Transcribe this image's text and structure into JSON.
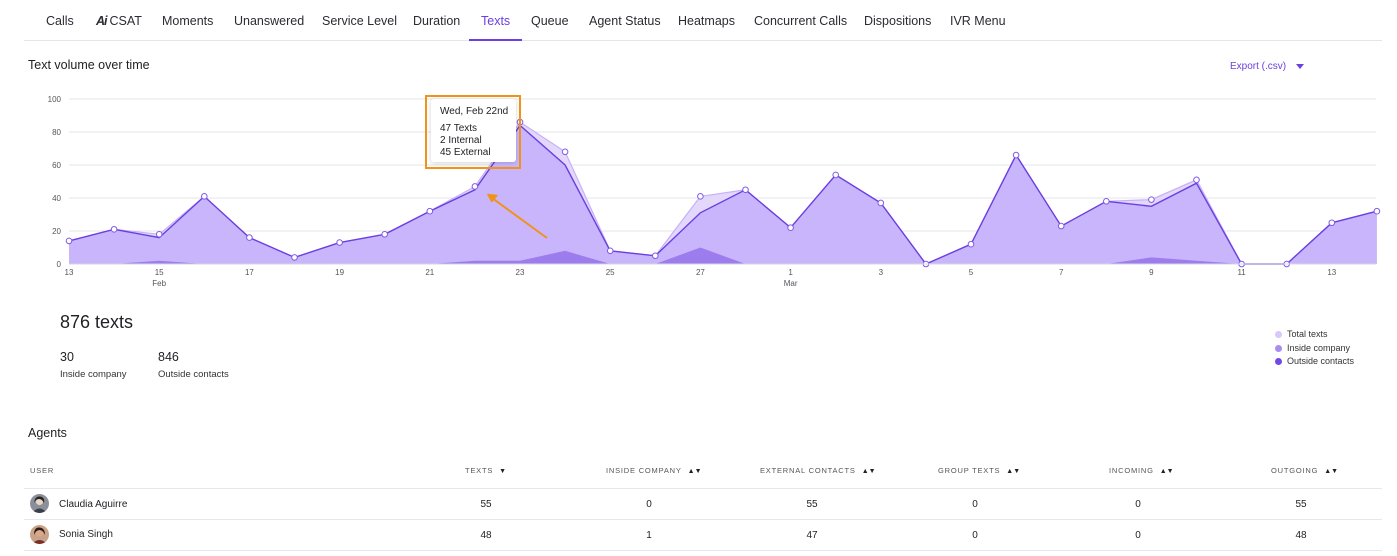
{
  "tabs": [
    "Calls",
    "CSAT",
    "Moments",
    "Unanswered",
    "Service Level",
    "Duration",
    "Texts",
    "Queue",
    "Agent Status",
    "Heatmaps",
    "Concurrent Calls",
    "Dispositions",
    "IVR Menu"
  ],
  "active_tab": "Texts",
  "ai_badge": "Ai",
  "export_label": "Export (.csv)",
  "tooltip": {
    "date": "Wed, Feb 22nd",
    "texts": "47 Texts",
    "internal": "2 Internal",
    "external": "45 External"
  },
  "summary": {
    "total": "876 texts",
    "inside_value": "30",
    "inside_label": "Inside company",
    "outside_value": "846",
    "outside_label": "Outside contacts"
  },
  "agents": {
    "title": "Agents",
    "columns": [
      "USER",
      "TEXTS",
      "INSIDE COMPANY",
      "EXTERNAL CONTACTS",
      "GROUP TEXTS",
      "INCOMING",
      "OUTGOING"
    ],
    "rows": [
      {
        "name": "Claudia Aguirre",
        "values": [
          "55",
          "0",
          "55",
          "0",
          "0",
          "55"
        ]
      },
      {
        "name": "Sonia Singh",
        "values": [
          "48",
          "1",
          "47",
          "0",
          "0",
          "48"
        ]
      }
    ]
  },
  "colors": {
    "accent": "#6c3fe0",
    "total": "#d8c8fb",
    "inside": "#a98cf2",
    "outside": "#7248e6",
    "highlight": "#f0931c"
  },
  "chart_data": {
    "type": "area",
    "title": "Text volume over time",
    "xlabel": "",
    "ylabel": "",
    "ylim": [
      0,
      100
    ],
    "yticks": [
      0,
      20,
      40,
      60,
      80,
      100
    ],
    "x": [
      "Feb 13",
      "Feb 14",
      "Feb 15",
      "Feb 16",
      "Feb 17",
      "Feb 18",
      "Feb 19",
      "Feb 20",
      "Feb 21",
      "Feb 22",
      "Feb 23",
      "Feb 24",
      "Feb 25",
      "Feb 26",
      "Feb 27",
      "Feb 28",
      "Mar 1",
      "Mar 2",
      "Mar 3",
      "Mar 4",
      "Mar 5",
      "Mar 6",
      "Mar 7",
      "Mar 8",
      "Mar 9",
      "Mar 10",
      "Mar 11",
      "Mar 12",
      "Mar 13",
      "Mar 14"
    ],
    "x_tick_labels": [
      {
        "index": 0,
        "label": "13"
      },
      {
        "index": 2,
        "label": "15",
        "sub": "Feb"
      },
      {
        "index": 4,
        "label": "17"
      },
      {
        "index": 6,
        "label": "19"
      },
      {
        "index": 8,
        "label": "21"
      },
      {
        "index": 10,
        "label": "23"
      },
      {
        "index": 12,
        "label": "25"
      },
      {
        "index": 14,
        "label": "27"
      },
      {
        "index": 16,
        "label": "1",
        "sub": "Mar"
      },
      {
        "index": 18,
        "label": "3"
      },
      {
        "index": 20,
        "label": "5"
      },
      {
        "index": 22,
        "label": "7"
      },
      {
        "index": 24,
        "label": "9"
      },
      {
        "index": 26,
        "label": "11"
      },
      {
        "index": 28,
        "label": "13"
      }
    ],
    "legend_position": "bottom-right",
    "grid": true,
    "highlight_index": 9,
    "series": [
      {
        "name": "Total texts",
        "values": [
          14,
          21,
          18,
          41,
          16,
          4,
          13,
          18,
          32,
          47,
          86,
          68,
          8,
          5,
          41,
          45,
          22,
          54,
          37,
          0,
          12,
          66,
          23,
          38,
          39,
          51,
          0,
          0,
          25,
          32
        ]
      },
      {
        "name": "Inside company",
        "values": [
          0,
          0,
          2,
          0,
          0,
          0,
          0,
          0,
          0,
          2,
          2,
          8,
          0,
          0,
          10,
          0,
          0,
          0,
          0,
          0,
          0,
          0,
          0,
          0,
          4,
          2,
          0,
          0,
          0,
          0
        ]
      },
      {
        "name": "Outside contacts",
        "values": [
          14,
          21,
          16,
          41,
          16,
          4,
          13,
          18,
          32,
          45,
          84,
          60,
          8,
          5,
          31,
          45,
          22,
          54,
          37,
          0,
          12,
          66,
          23,
          38,
          35,
          49,
          0,
          0,
          25,
          32
        ]
      }
    ]
  }
}
